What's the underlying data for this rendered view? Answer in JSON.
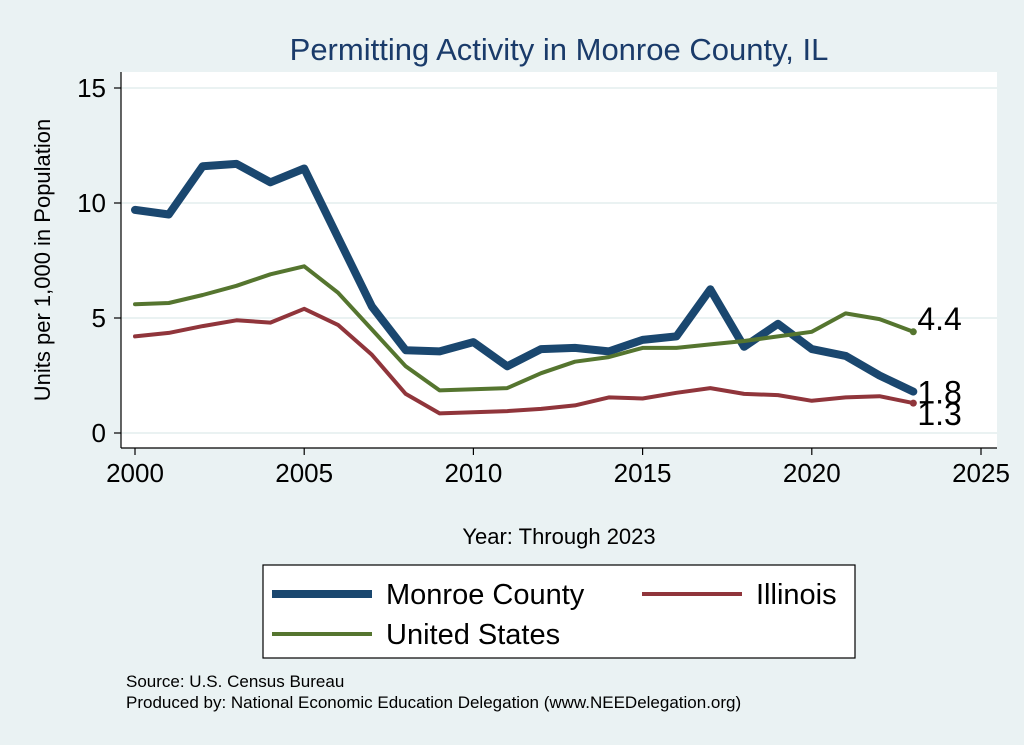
{
  "chart_data": {
    "type": "line",
    "title": "Permitting Activity in Monroe County, IL",
    "xlabel": "Year: Through 2023",
    "ylabel": "Units per 1,000 in Population",
    "xlim": [
      2000,
      2025
    ],
    "ylim": [
      0,
      15
    ],
    "xticks": [
      2000,
      2005,
      2010,
      2015,
      2020,
      2025
    ],
    "yticks": [
      0,
      5,
      10,
      15
    ],
    "grid": "horizontal",
    "x": [
      2000,
      2001,
      2002,
      2003,
      2004,
      2005,
      2006,
      2007,
      2008,
      2009,
      2010,
      2011,
      2012,
      2013,
      2014,
      2015,
      2016,
      2017,
      2018,
      2019,
      2020,
      2021,
      2022,
      2023
    ],
    "series": [
      {
        "name": "Monroe County",
        "color": "#1a476f",
        "end_label": "1.8",
        "values": [
          9.7,
          9.5,
          11.6,
          11.7,
          10.9,
          11.5,
          8.5,
          5.5,
          3.6,
          3.55,
          3.95,
          2.9,
          3.65,
          3.7,
          3.55,
          4.05,
          4.2,
          6.25,
          3.75,
          4.75,
          3.65,
          3.35,
          2.5,
          1.8
        ]
      },
      {
        "name": "Illinois",
        "color": "#90353b",
        "end_label": "1.3",
        "values": [
          4.2,
          4.35,
          4.65,
          4.9,
          4.8,
          5.4,
          4.7,
          3.4,
          1.7,
          0.85,
          0.9,
          0.95,
          1.05,
          1.2,
          1.55,
          1.5,
          1.75,
          1.95,
          1.7,
          1.65,
          1.4,
          1.55,
          1.6,
          1.3
        ]
      },
      {
        "name": "United States",
        "color": "#55752f",
        "end_label": "4.4",
        "values": [
          5.6,
          5.65,
          6.0,
          6.4,
          6.9,
          7.25,
          6.1,
          4.5,
          2.9,
          1.85,
          1.9,
          1.95,
          2.6,
          3.1,
          3.3,
          3.7,
          3.7,
          3.85,
          4.0,
          4.2,
          4.4,
          5.2,
          4.95,
          4.4
        ]
      }
    ],
    "legend": {
      "position": "bottom",
      "columns": 2
    }
  },
  "source": {
    "line1": "Source: U.S. Census Bureau",
    "line2": "Produced by: National Economic Education Delegation (www.NEEDelegation.org)"
  }
}
